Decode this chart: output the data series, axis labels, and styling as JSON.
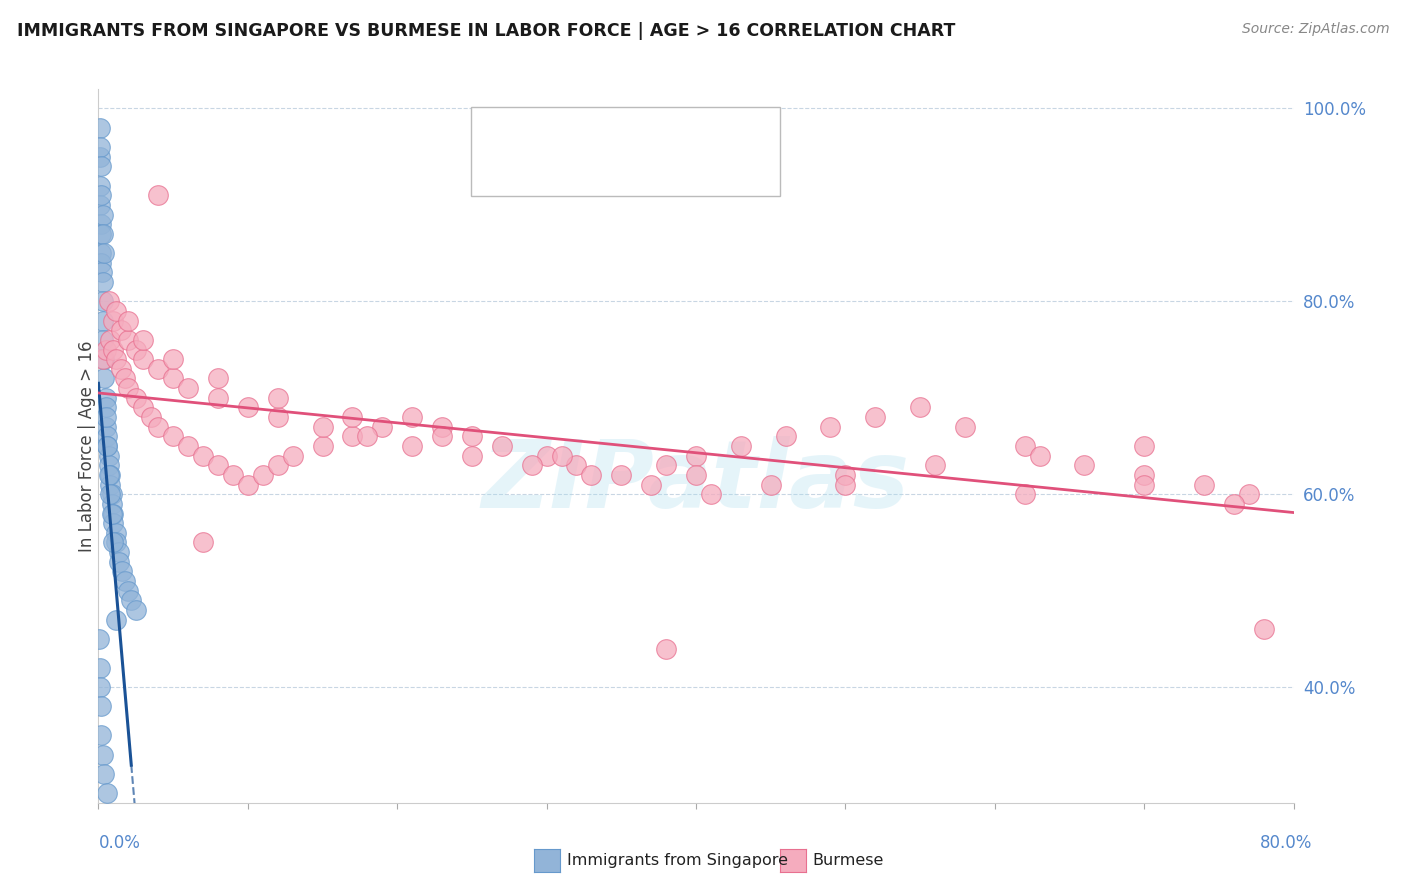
{
  "title": "IMMIGRANTS FROM SINGAPORE VS BURMESE IN LABOR FORCE | AGE > 16 CORRELATION CHART",
  "source": "Source: ZipAtlas.com",
  "ylabel": "In Labor Force | Age > 16",
  "legend_label_blue": "Immigrants from Singapore",
  "legend_label_pink": "Burmese",
  "blue_color": "#92B4D8",
  "blue_color_edge": "#6699CC",
  "pink_color": "#F5ACBE",
  "pink_color_edge": "#E87090",
  "blue_line_color": "#1A5296",
  "pink_line_color": "#E0507A",
  "watermark": "ZIPatlas",
  "xlim": [
    0.0,
    0.8
  ],
  "ylim": [
    0.28,
    1.02
  ],
  "right_yticks": [
    1.0,
    0.8,
    0.6,
    0.4
  ],
  "right_yticklabels": [
    "100.0%",
    "80.0%",
    "60.0%",
    "40.0%"
  ],
  "sg_slope": -18.0,
  "sg_intercept": 0.715,
  "bm_slope": -0.155,
  "bm_intercept": 0.705,
  "sg_x_vals": [
    0.0008,
    0.001,
    0.0012,
    0.0015,
    0.002,
    0.002,
    0.002,
    0.0025,
    0.003,
    0.003,
    0.003,
    0.003,
    0.004,
    0.004,
    0.005,
    0.005,
    0.005,
    0.006,
    0.006,
    0.007,
    0.007,
    0.008,
    0.008,
    0.009,
    0.009,
    0.01,
    0.01,
    0.012,
    0.012,
    0.014,
    0.014,
    0.016,
    0.018,
    0.02,
    0.022,
    0.025,
    0.001,
    0.001,
    0.002,
    0.002,
    0.003,
    0.003,
    0.004,
    0.005,
    0.006,
    0.007,
    0.008,
    0.009,
    0.01,
    0.012,
    0.0005,
    0.0008,
    0.001,
    0.0015,
    0.002,
    0.003,
    0.004,
    0.006
  ],
  "sg_y_vals": [
    0.95,
    0.92,
    0.9,
    0.88,
    0.87,
    0.85,
    0.84,
    0.83,
    0.82,
    0.8,
    0.78,
    0.76,
    0.74,
    0.72,
    0.7,
    0.69,
    0.67,
    0.66,
    0.65,
    0.64,
    0.63,
    0.62,
    0.61,
    0.6,
    0.59,
    0.58,
    0.57,
    0.56,
    0.55,
    0.54,
    0.53,
    0.52,
    0.51,
    0.5,
    0.49,
    0.48,
    0.98,
    0.96,
    0.94,
    0.91,
    0.89,
    0.87,
    0.85,
    0.68,
    0.65,
    0.62,
    0.6,
    0.58,
    0.55,
    0.47,
    0.45,
    0.42,
    0.4,
    0.38,
    0.35,
    0.33,
    0.31,
    0.29
  ],
  "bm_x_vals": [
    0.003,
    0.005,
    0.008,
    0.01,
    0.012,
    0.015,
    0.018,
    0.02,
    0.025,
    0.03,
    0.035,
    0.04,
    0.05,
    0.06,
    0.07,
    0.08,
    0.09,
    0.1,
    0.11,
    0.12,
    0.13,
    0.15,
    0.17,
    0.19,
    0.21,
    0.23,
    0.25,
    0.27,
    0.3,
    0.32,
    0.35,
    0.38,
    0.4,
    0.43,
    0.46,
    0.49,
    0.52,
    0.55,
    0.58,
    0.62,
    0.66,
    0.7,
    0.74,
    0.77,
    0.01,
    0.015,
    0.02,
    0.025,
    0.03,
    0.04,
    0.05,
    0.06,
    0.08,
    0.1,
    0.12,
    0.15,
    0.18,
    0.21,
    0.25,
    0.29,
    0.33,
    0.37,
    0.41,
    0.45,
    0.5,
    0.56,
    0.63,
    0.7,
    0.007,
    0.012,
    0.02,
    0.03,
    0.05,
    0.08,
    0.12,
    0.17,
    0.23,
    0.31,
    0.4,
    0.5,
    0.62,
    0.7,
    0.76,
    0.78,
    0.04,
    0.07,
    0.38
  ],
  "bm_y_vals": [
    0.74,
    0.75,
    0.76,
    0.75,
    0.74,
    0.73,
    0.72,
    0.71,
    0.7,
    0.69,
    0.68,
    0.67,
    0.66,
    0.65,
    0.64,
    0.63,
    0.62,
    0.61,
    0.62,
    0.63,
    0.64,
    0.65,
    0.66,
    0.67,
    0.68,
    0.67,
    0.66,
    0.65,
    0.64,
    0.63,
    0.62,
    0.63,
    0.64,
    0.65,
    0.66,
    0.67,
    0.68,
    0.69,
    0.67,
    0.65,
    0.63,
    0.62,
    0.61,
    0.6,
    0.78,
    0.77,
    0.76,
    0.75,
    0.74,
    0.73,
    0.72,
    0.71,
    0.7,
    0.69,
    0.68,
    0.67,
    0.66,
    0.65,
    0.64,
    0.63,
    0.62,
    0.61,
    0.6,
    0.61,
    0.62,
    0.63,
    0.64,
    0.65,
    0.8,
    0.79,
    0.78,
    0.76,
    0.74,
    0.72,
    0.7,
    0.68,
    0.66,
    0.64,
    0.62,
    0.61,
    0.6,
    0.61,
    0.59,
    0.46,
    0.91,
    0.55,
    0.44
  ]
}
